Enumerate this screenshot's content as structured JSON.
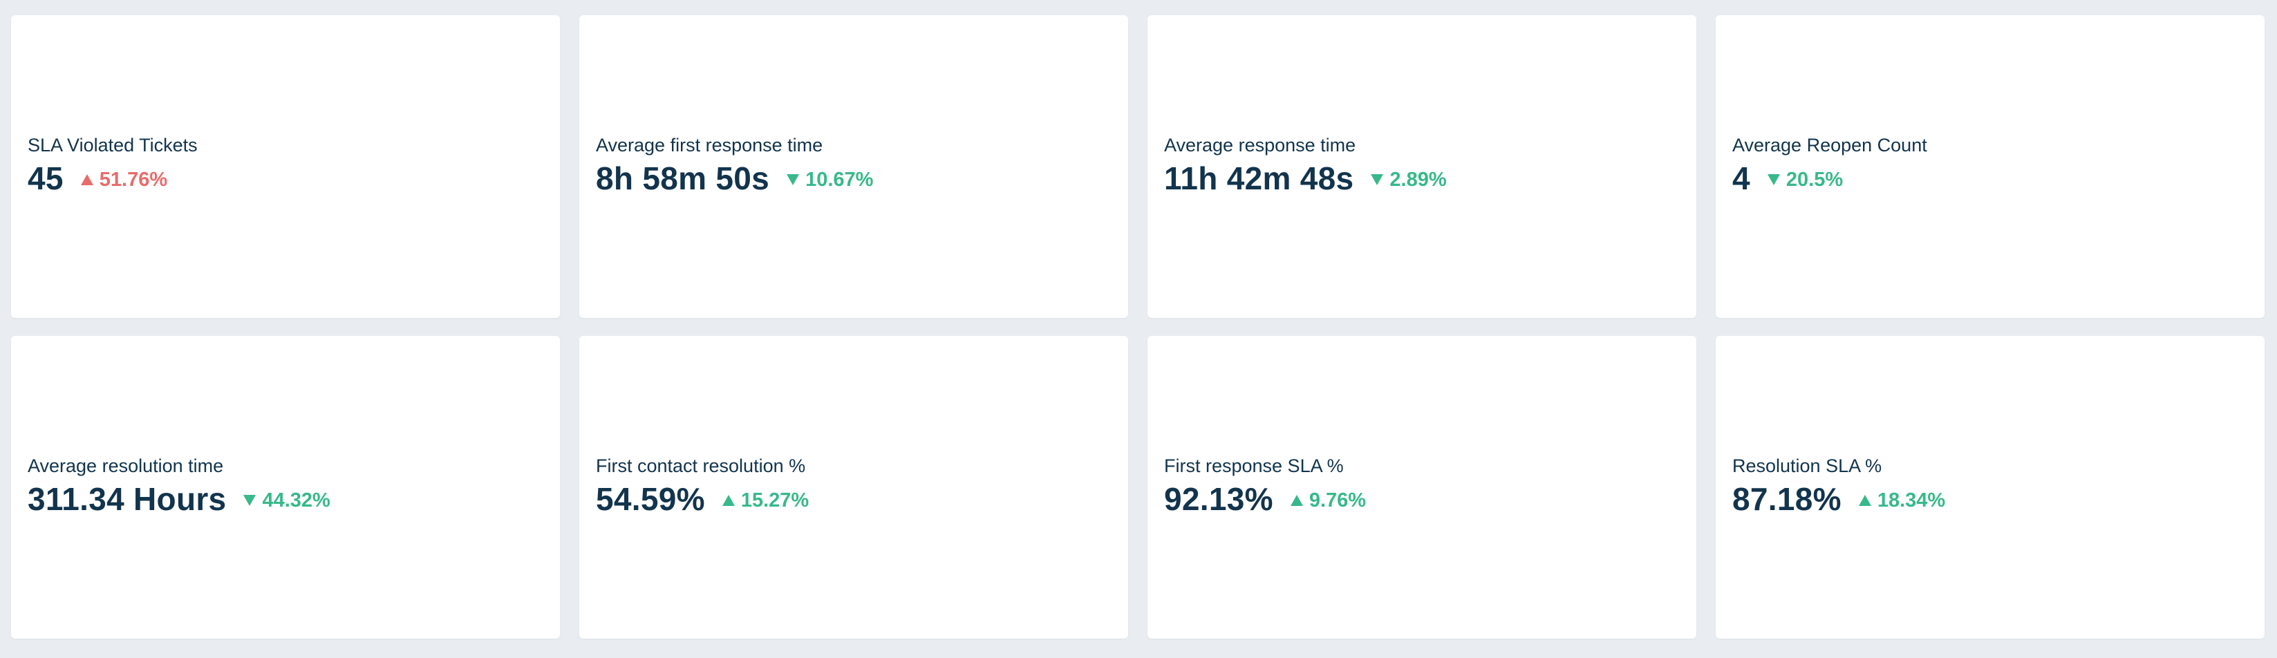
{
  "colors": {
    "page_background": "#e9edf1",
    "card_background": "#ffffff",
    "text_primary": "#12344d",
    "trend_negative": "#e86b6b",
    "trend_positive": "#37b98a"
  },
  "metrics": [
    {
      "title": "SLA Violated Tickets",
      "value": "45",
      "change": "51.76%",
      "direction": "up",
      "sentiment": "negative",
      "icon": "triangle-up-icon"
    },
    {
      "title": "Average first response time",
      "value": "8h 58m 50s",
      "change": "10.67%",
      "direction": "down",
      "sentiment": "positive",
      "icon": "triangle-down-icon"
    },
    {
      "title": "Average response time",
      "value": "11h 42m 48s",
      "change": "2.89%",
      "direction": "down",
      "sentiment": "positive",
      "icon": "triangle-down-icon"
    },
    {
      "title": "Average Reopen Count",
      "value": "4",
      "change": "20.5%",
      "direction": "down",
      "sentiment": "positive",
      "icon": "triangle-down-icon"
    },
    {
      "title": "Average resolution time",
      "value": "311.34 Hours",
      "change": "44.32%",
      "direction": "down",
      "sentiment": "positive",
      "icon": "triangle-down-icon"
    },
    {
      "title": "First contact resolution %",
      "value": "54.59%",
      "change": "15.27%",
      "direction": "up",
      "sentiment": "positive",
      "icon": "triangle-up-icon"
    },
    {
      "title": "First response SLA %",
      "value": "92.13%",
      "change": "9.76%",
      "direction": "up",
      "sentiment": "positive",
      "icon": "triangle-up-icon"
    },
    {
      "title": "Resolution SLA %",
      "value": "87.18%",
      "change": "18.34%",
      "direction": "up",
      "sentiment": "positive",
      "icon": "triangle-up-icon"
    }
  ]
}
